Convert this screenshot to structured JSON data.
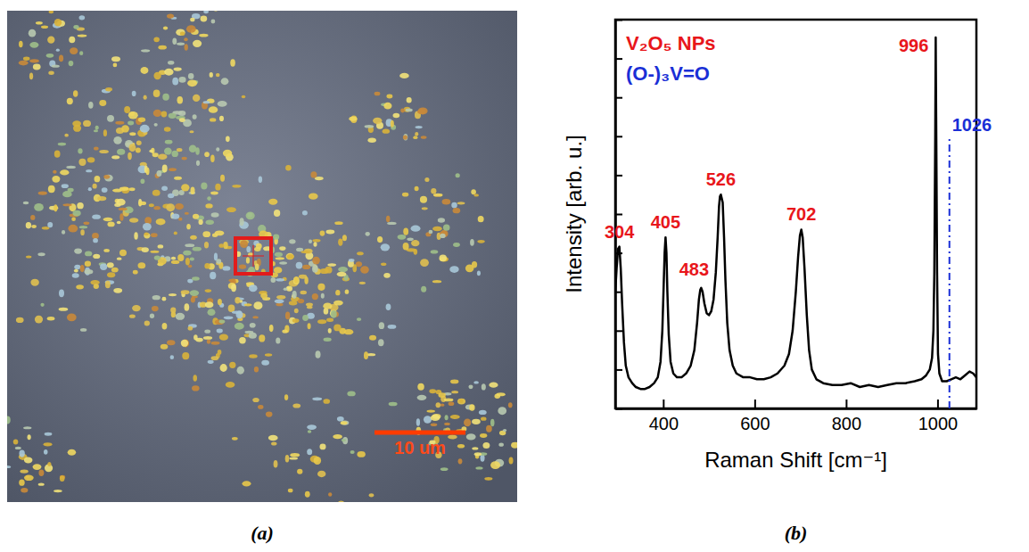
{
  "chart_data": [
    {
      "type": "image",
      "panel_label": "(a)",
      "scale_bar": {
        "label": "10 um",
        "length": 10
      }
    },
    {
      "type": "line",
      "panel_label": "(b)",
      "xlabel": "Raman Shift [cm⁻¹]",
      "ylabel": "Intensity [arb. u.]",
      "xlim": [
        295,
        1085
      ],
      "xticks": [
        400,
        600,
        800,
        1000
      ],
      "ylim": [
        0,
        100
      ],
      "yticks": [
        0,
        10,
        20,
        30,
        40,
        50,
        60,
        70,
        80,
        90,
        100
      ],
      "tick_labels": "x",
      "color": "#000000",
      "x": [
        295,
        298,
        301,
        304,
        307,
        310,
        314,
        318,
        324,
        332,
        340,
        350,
        360,
        370,
        380,
        388,
        394,
        398,
        401,
        403,
        405,
        407,
        409,
        412,
        416,
        422,
        430,
        440,
        450,
        460,
        468,
        474,
        478,
        481,
        483,
        486,
        490,
        495,
        500,
        505,
        510,
        515,
        519,
        522,
        524,
        526,
        528,
        530,
        533,
        536,
        540,
        545,
        552,
        560,
        575,
        590,
        605,
        620,
        635,
        650,
        665,
        675,
        683,
        690,
        695,
        699,
        702,
        705,
        709,
        714,
        719,
        725,
        735,
        750,
        770,
        790,
        810,
        830,
        850,
        870,
        890,
        910,
        930,
        950,
        965,
        975,
        983,
        988,
        991,
        993,
        995,
        996,
        997,
        999,
        1001,
        1004,
        1010,
        1020,
        1030,
        1040,
        1050,
        1060,
        1070,
        1078,
        1085
      ],
      "values": [
        30,
        36,
        41,
        41.6,
        36,
        27,
        17,
        11,
        8,
        6.5,
        5.5,
        5,
        5,
        5.5,
        6.5,
        8,
        12,
        20,
        32,
        40,
        44,
        40,
        30,
        19,
        12,
        9,
        8,
        8,
        9,
        11,
        15,
        22,
        28,
        30.5,
        31,
        30,
        27,
        24.5,
        24,
        25,
        28,
        35,
        44,
        52,
        54.5,
        55,
        54,
        53,
        44,
        33,
        22,
        15,
        11,
        9,
        8,
        8,
        7.5,
        7.5,
        8,
        9,
        11,
        14,
        20,
        30,
        39,
        44.5,
        46,
        44,
        36,
        24,
        15,
        10,
        7.5,
        6.5,
        6,
        6,
        6.5,
        5.5,
        6,
        5.5,
        6,
        6.5,
        6.5,
        7,
        7.5,
        8.5,
        10,
        13,
        20,
        35,
        70,
        95.4,
        75,
        35,
        14,
        9,
        7,
        7,
        7.5,
        8,
        7.5,
        8.5,
        9.5,
        9,
        8
      ],
      "annotations": [
        {
          "text": "V₂O₅ NPs",
          "color": "#e8161b"
        },
        {
          "text": "(O-)₃V=O",
          "color": "#1a2fd6"
        },
        {
          "text": "304",
          "x": 304,
          "y": 41.6,
          "color": "#e8161b"
        },
        {
          "text": "405",
          "x": 405,
          "y": 44,
          "color": "#e8161b"
        },
        {
          "text": "483",
          "x": 483,
          "y": 31,
          "color": "#e8161b"
        },
        {
          "text": "526",
          "x": 526,
          "y": 55,
          "color": "#e8161b"
        },
        {
          "text": "702",
          "x": 702,
          "y": 46,
          "color": "#e8161b"
        },
        {
          "text": "996",
          "x": 996,
          "y": 95.4,
          "color": "#e8161b"
        },
        {
          "text": "1026",
          "x": 1026,
          "color": "#1a2fd6",
          "line_style": "dashdot"
        }
      ]
    }
  ]
}
